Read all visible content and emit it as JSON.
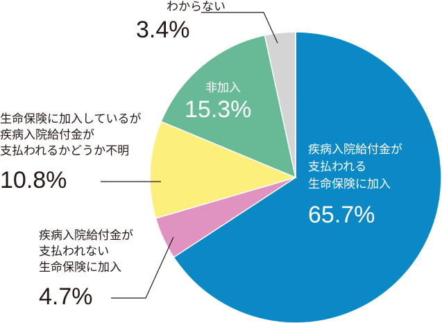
{
  "chart_data": {
    "type": "pie",
    "labels": [
      [
        "疾病入院給付金が",
        "支払われる",
        "生命保険に加入"
      ],
      [
        "疾病入院給付金が",
        "支払われない",
        "生命保険に加入"
      ],
      [
        "生命保険に加入しているが",
        "疾病入院給付金が",
        "支払われるかどうか不明"
      ],
      [
        "非加入"
      ],
      [
        "わからない"
      ]
    ],
    "values": [
      65.7,
      4.7,
      10.8,
      15.3,
      3.4
    ],
    "value_labels": [
      "65.7%",
      "4.7%",
      "10.8%",
      "15.3%",
      "3.4%"
    ],
    "colors": [
      "#0a89c6",
      "#e092c0",
      "#fcef7c",
      "#68b995",
      "#d4d4d4"
    ]
  }
}
